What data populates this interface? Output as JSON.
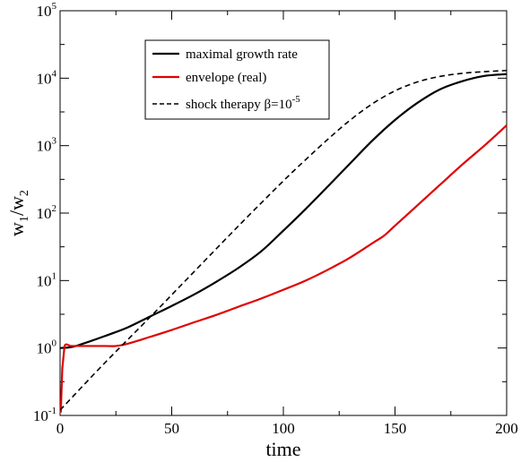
{
  "chart_data": {
    "type": "line",
    "xlabel": "time",
    "ylabel": "w1/w2",
    "xlim": [
      0,
      200
    ],
    "ylim": [
      0.1,
      100000
    ],
    "yscale": "log",
    "grid": false,
    "legend_placement": "top-left",
    "x_ticks": [
      "0",
      "50",
      "100",
      "150",
      "200"
    ],
    "y_ticks": [
      {
        "base": "10",
        "exp": "-1",
        "value": 0.1
      },
      {
        "base": "10",
        "exp": "0",
        "value": 1
      },
      {
        "base": "10",
        "exp": "1",
        "value": 10
      },
      {
        "base": "10",
        "exp": "2",
        "value": 100
      },
      {
        "base": "10",
        "exp": "3",
        "value": 1000
      },
      {
        "base": "10",
        "exp": "4",
        "value": 10000
      },
      {
        "base": "10",
        "exp": "5",
        "value": 100000
      }
    ],
    "series": [
      {
        "name": "maximal growth rate",
        "color": "#000000",
        "dash": "solid",
        "x": [
          0,
          5,
          10,
          20,
          30,
          40,
          50,
          60,
          70,
          80,
          90,
          100,
          110,
          120,
          130,
          140,
          150,
          160,
          170,
          180,
          190,
          200
        ],
        "y": [
          1.0,
          1.03,
          1.15,
          1.5,
          2.0,
          2.9,
          4.2,
          6.2,
          9.6,
          15.5,
          27,
          55,
          115,
          250,
          550,
          1200,
          2400,
          4300,
          6800,
          9000,
          10800,
          11500
        ]
      },
      {
        "name": "envelope (real)",
        "color": "#e00000",
        "dash": "solid",
        "x": [
          0.3,
          1,
          2,
          5,
          10,
          20,
          25,
          30,
          40,
          50,
          60,
          70,
          80,
          90,
          100,
          110,
          120,
          130,
          140,
          145,
          150,
          160,
          170,
          180,
          190,
          200
        ],
        "y": [
          0.11,
          0.5,
          1.07,
          1.07,
          1.07,
          1.07,
          1.07,
          1.15,
          1.45,
          1.85,
          2.4,
          3.1,
          4.1,
          5.4,
          7.3,
          10.0,
          14.5,
          22,
          36,
          46,
          65,
          130,
          260,
          520,
          1000,
          2000
        ]
      },
      {
        "name": "shock therapy β=10",
        "name_sup": "-5",
        "color": "#000000",
        "dash": "dashed",
        "x": [
          0,
          20,
          40,
          60,
          80,
          100,
          110,
          120,
          130,
          140,
          150,
          160,
          170,
          180,
          190,
          200
        ],
        "y": [
          0.12,
          0.6,
          2.8,
          13.5,
          65,
          300,
          620,
          1250,
          2400,
          4200,
          6500,
          8800,
          10600,
          11800,
          12500,
          13000
        ]
      }
    ]
  }
}
